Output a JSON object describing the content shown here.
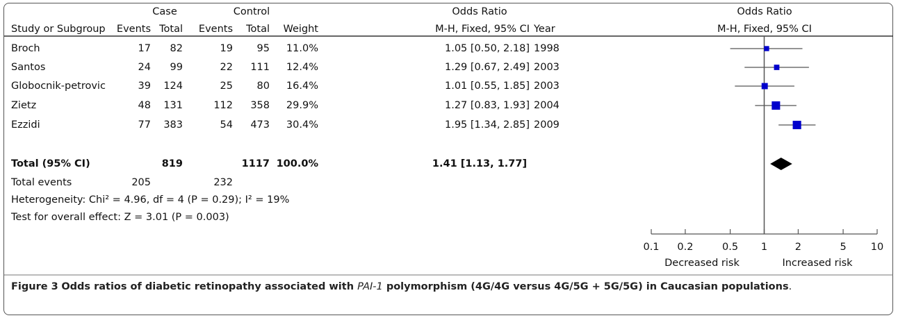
{
  "chart_data": {
    "type": "forest",
    "case_label": "Case",
    "control_label": "Control",
    "or_label": "Odds Ratio",
    "plot_label": "Odds Ratio",
    "columns": {
      "study": "Study or Subgroup",
      "case_events": "Events",
      "case_total": "Total",
      "control_events": "Events",
      "control_total": "Total",
      "weight": "Weight",
      "or_method": "M-H, Fixed, 95% CI",
      "year": "Year",
      "plot_method": "M-H, Fixed, 95% CI"
    },
    "studies": [
      {
        "name": "Broch",
        "case_events": 17,
        "case_total": 82,
        "control_events": 19,
        "control_total": 95,
        "weight": 11.0,
        "weight_label": "11.0%",
        "or": 1.05,
        "lo": 0.5,
        "hi": 2.18,
        "ci_label": "1.05 [0.50, 2.18]",
        "year": 1998
      },
      {
        "name": "Santos",
        "case_events": 24,
        "case_total": 99,
        "control_events": 22,
        "control_total": 111,
        "weight": 12.4,
        "weight_label": "12.4%",
        "or": 1.29,
        "lo": 0.67,
        "hi": 2.49,
        "ci_label": "1.29 [0.67, 2.49]",
        "year": 2003
      },
      {
        "name": "Globocnik-petrovic",
        "case_events": 39,
        "case_total": 124,
        "control_events": 25,
        "control_total": 80,
        "weight": 16.4,
        "weight_label": "16.4%",
        "or": 1.01,
        "lo": 0.55,
        "hi": 1.85,
        "ci_label": "1.01 [0.55, 1.85]",
        "year": 2003
      },
      {
        "name": "Zietz",
        "case_events": 48,
        "case_total": 131,
        "control_events": 112,
        "control_total": 358,
        "weight": 29.9,
        "weight_label": "29.9%",
        "or": 1.27,
        "lo": 0.83,
        "hi": 1.93,
        "ci_label": "1.27 [0.83, 1.93]",
        "year": 2004
      },
      {
        "name": "Ezzidi",
        "case_events": 77,
        "case_total": 383,
        "control_events": 54,
        "control_total": 473,
        "weight": 30.4,
        "weight_label": "30.4%",
        "or": 1.95,
        "lo": 1.34,
        "hi": 2.85,
        "ci_label": "1.95 [1.34, 2.85]",
        "year": 2009
      }
    ],
    "total": {
      "name": "Total (95% CI)",
      "case_total": 819,
      "control_total": 1117,
      "weight": 100.0,
      "weight_label": "100.0%",
      "or": 1.41,
      "lo": 1.13,
      "hi": 1.77,
      "ci_label": "1.41 [1.13, 1.77]"
    },
    "total_events": {
      "name": "Total events",
      "case_events": 205,
      "control_events": 232
    },
    "heterogeneity": "Heterogeneity: Chi² = 4.96, df = 4 (P = 0.29); I² = 19%",
    "overall_effect": "Test for overall effect: Z = 3.01 (P = 0.003)",
    "log_scale": true,
    "xlim": [
      0.1,
      10
    ],
    "xticks": [
      0.1,
      0.2,
      0.5,
      1,
      2,
      5,
      10
    ],
    "reference_line": 1,
    "left_label": "Decreased risk",
    "right_label": "Increased risk",
    "color": "#0000cc"
  },
  "caption": {
    "label": "Figure 3",
    "text_before": "Odds ratios of diabetic retinopathy associated with ",
    "italic": "PAI-1",
    "text_after": " polymorphism (4G/4G versus 4G/5G + 5G/5G) in Caucasian populations",
    "end": "."
  }
}
